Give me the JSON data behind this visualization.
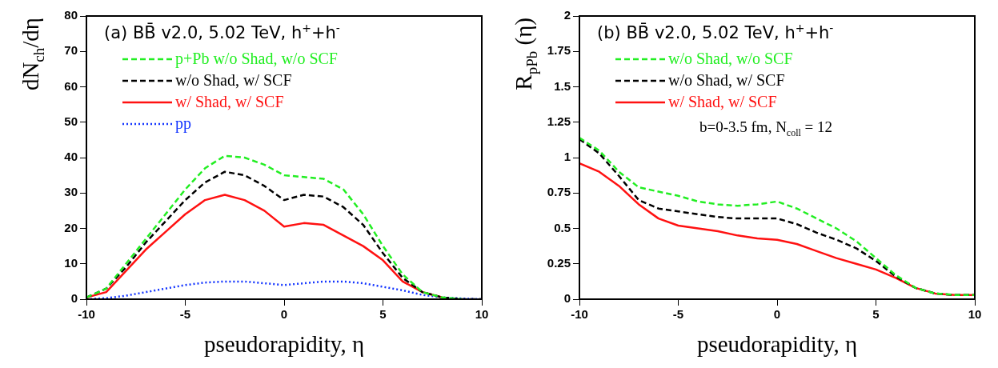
{
  "chart_data": [
    {
      "type": "line",
      "title": "(a) BB̄ v2.0, 5.02 TeV, h$^{+}$+h$^{-}$",
      "xlabel": "pseudorapidity, η",
      "ylabel": "dN$_{ch}$/dη",
      "x": [
        -10,
        -9,
        -8,
        -7,
        -6,
        -5,
        -4,
        -3,
        -2,
        -1,
        0,
        1,
        2,
        3,
        4,
        5,
        6,
        7,
        8,
        9,
        10
      ],
      "xlim": [
        -10,
        10
      ],
      "xticks": [
        -10,
        -5,
        0,
        5,
        10
      ],
      "ylim": [
        0,
        80
      ],
      "yticks": [
        0,
        10,
        20,
        30,
        40,
        50,
        60,
        70,
        80
      ],
      "grid": false,
      "legend": "top",
      "marker": "none",
      "series": [
        {
          "name": "p+Pb w/o Shad, w/o SCF",
          "color": "#22ee22",
          "line_style": "dashed",
          "values": [
            0.5,
            3,
            10,
            17,
            24,
            31,
            37,
            40.5,
            40,
            38,
            35,
            34.5,
            34,
            31,
            24,
            15,
            7,
            2,
            0.5,
            0,
            null
          ]
        },
        {
          "name": "w/o Shad, w/ SCF",
          "color": "#000000",
          "line_style": "dashed",
          "values": [
            0.5,
            3,
            9,
            16,
            22,
            28,
            33,
            36,
            35,
            32,
            28,
            29.5,
            29,
            26,
            21,
            13,
            6,
            2,
            0.5,
            0,
            0
          ]
        },
        {
          "name": "w/ Shad, w/ SCF",
          "color": "#ff1111",
          "line_style": "solid",
          "values": [
            0.5,
            2,
            8,
            14,
            19,
            24,
            28,
            29.5,
            28,
            25,
            20.5,
            21.5,
            21,
            18,
            15,
            11,
            5,
            2,
            0.5,
            null,
            null
          ]
        },
        {
          "name": "pp",
          "color": "#1133ff",
          "line_style": "dotted",
          "values": [
            0,
            0.3,
            1,
            2,
            3,
            4,
            4.7,
            5,
            5,
            4.5,
            4,
            4.5,
            5,
            5,
            4.5,
            3.5,
            2.5,
            1.2,
            0.5,
            0.2,
            0
          ]
        }
      ]
    },
    {
      "type": "line",
      "title": "(b) BB̄ v2.0, 5.02 TeV, h$^{+}$+h$^{-}$",
      "xlabel": "pseudorapidity, η",
      "ylabel": "R$_{pPb}$ (η)",
      "annotations": [
        "b=0-3.5 fm, N$_{coll}$ = 12"
      ],
      "x": [
        -10,
        -9,
        -8,
        -7,
        -6,
        -5,
        -4,
        -3,
        -2,
        -1,
        0,
        1,
        2,
        3,
        4,
        5,
        6,
        7,
        8,
        9,
        10
      ],
      "xlim": [
        -10,
        10
      ],
      "xticks": [
        -10,
        -5,
        0,
        5,
        10
      ],
      "ylim": [
        0,
        2
      ],
      "yticks": [
        0,
        0.25,
        0.5,
        0.75,
        1,
        1.25,
        1.5,
        1.75,
        2
      ],
      "grid": false,
      "legend": "top",
      "marker": "none",
      "series": [
        {
          "name": "w/o Shad, w/o SCF",
          "color": "#22ee22",
          "line_style": "dashed",
          "values": [
            1.14,
            1.05,
            0.9,
            0.79,
            0.76,
            0.73,
            0.69,
            0.67,
            0.66,
            0.67,
            0.69,
            0.64,
            0.57,
            0.5,
            0.41,
            0.29,
            0.17,
            0.08,
            0.04,
            0.03,
            0.03
          ]
        },
        {
          "name": "w/o Shad, w/ SCF",
          "color": "#000000",
          "line_style": "dashed",
          "values": [
            1.13,
            1.03,
            0.87,
            0.7,
            0.64,
            0.62,
            0.6,
            0.58,
            0.57,
            0.57,
            0.57,
            0.53,
            0.47,
            0.42,
            0.36,
            0.27,
            0.16,
            0.08,
            0.04,
            0.03,
            0.03
          ]
        },
        {
          "name": "w/ Shad, w/ SCF",
          "color": "#ff1111",
          "line_style": "solid",
          "values": [
            0.96,
            0.9,
            0.8,
            0.67,
            0.57,
            0.52,
            0.5,
            0.48,
            0.45,
            0.43,
            0.42,
            0.39,
            0.34,
            0.29,
            0.25,
            0.21,
            0.15,
            0.08,
            0.04,
            0.03,
            0.03
          ]
        }
      ]
    }
  ]
}
